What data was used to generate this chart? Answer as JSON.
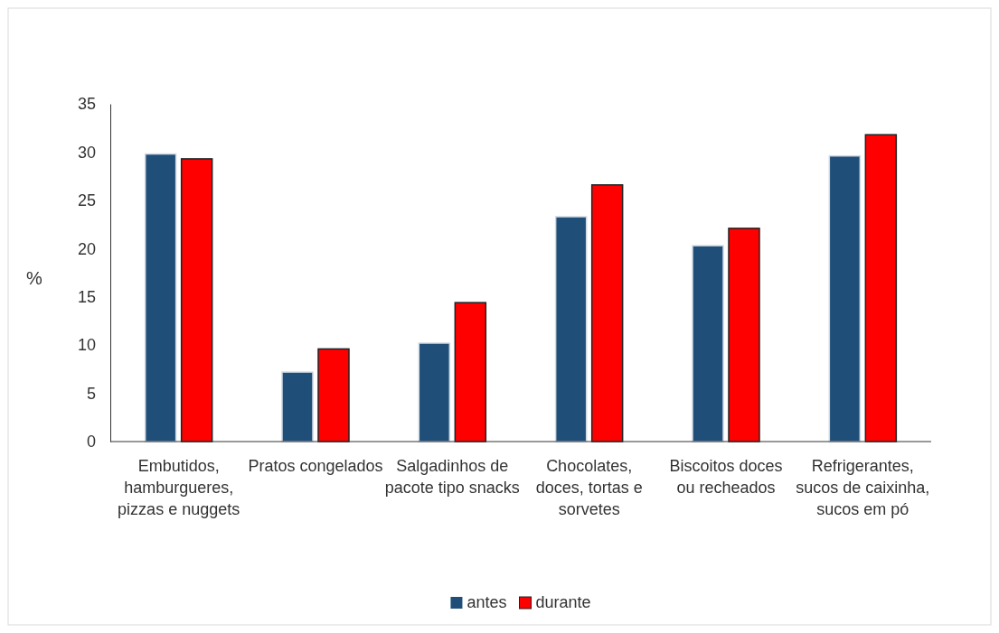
{
  "chart_data": {
    "type": "bar",
    "ylabel": "%",
    "categories": [
      "Embutidos, hamburgueres, pizzas e nuggets",
      "Pratos congelados",
      "Salgadinhos de pacote tipo snacks",
      "Chocolates, doces, tortas e sorvetes",
      "Biscoitos doces ou recheados",
      "Refrigerantes, sucos de caixinha, sucos em pó"
    ],
    "series": [
      {
        "name": "antes",
        "color": "#1f4e79",
        "values": [
          29.8,
          7.2,
          10.2,
          23.3,
          20.3,
          29.6
        ]
      },
      {
        "name": "durante",
        "color": "#ff0000",
        "values": [
          29.3,
          9.6,
          14.4,
          26.6,
          22.1,
          31.8
        ]
      }
    ],
    "ylim": [
      0,
      35
    ],
    "yticks": [
      0,
      5,
      10,
      15,
      20,
      25,
      30,
      35
    ],
    "grid": false,
    "legend": "bottom"
  }
}
